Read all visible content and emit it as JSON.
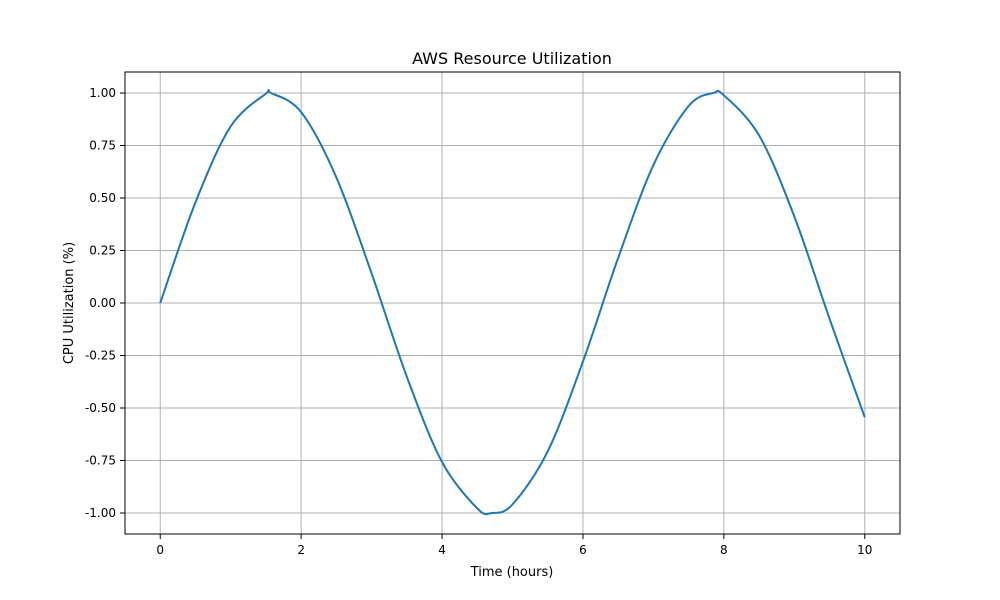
{
  "chart_data": {
    "type": "line",
    "title": "AWS Resource Utilization",
    "xlabel": "Time (hours)",
    "ylabel": "CPU Utilization (%)",
    "xlim": [
      -0.5,
      10.5
    ],
    "ylim": [
      -1.1,
      1.1
    ],
    "xticks": [
      0,
      2,
      4,
      6,
      8,
      10
    ],
    "xtick_labels": [
      "0",
      "2",
      "4",
      "6",
      "8",
      "10"
    ],
    "yticks": [
      1.0,
      0.75,
      0.5,
      0.25,
      0.0,
      -0.25,
      -0.5,
      -0.75,
      -1.0
    ],
    "ytick_labels": [
      "1.00",
      "0.75",
      "0.50",
      "0.25",
      "0.00",
      "-0.25",
      "-0.50",
      "-0.75",
      "-1.00"
    ],
    "grid": true,
    "series": [
      {
        "color": "#1f77b4",
        "x": [
          0,
          0.5,
          1,
          1.5,
          1.57,
          2,
          2.5,
          3,
          3.5,
          4,
          4.5,
          4.71,
          5,
          5.5,
          6,
          6.5,
          7,
          7.5,
          7.85,
          8,
          8.5,
          9,
          9.5,
          10
        ],
        "y": [
          0.0,
          0.479,
          0.841,
          0.997,
          1.0,
          0.909,
          0.598,
          0.141,
          -0.351,
          -0.757,
          -0.978,
          -1.0,
          -0.959,
          -0.706,
          -0.279,
          0.215,
          0.657,
          0.938,
          1.0,
          0.989,
          0.798,
          0.412,
          -0.075,
          -0.544
        ]
      }
    ]
  }
}
